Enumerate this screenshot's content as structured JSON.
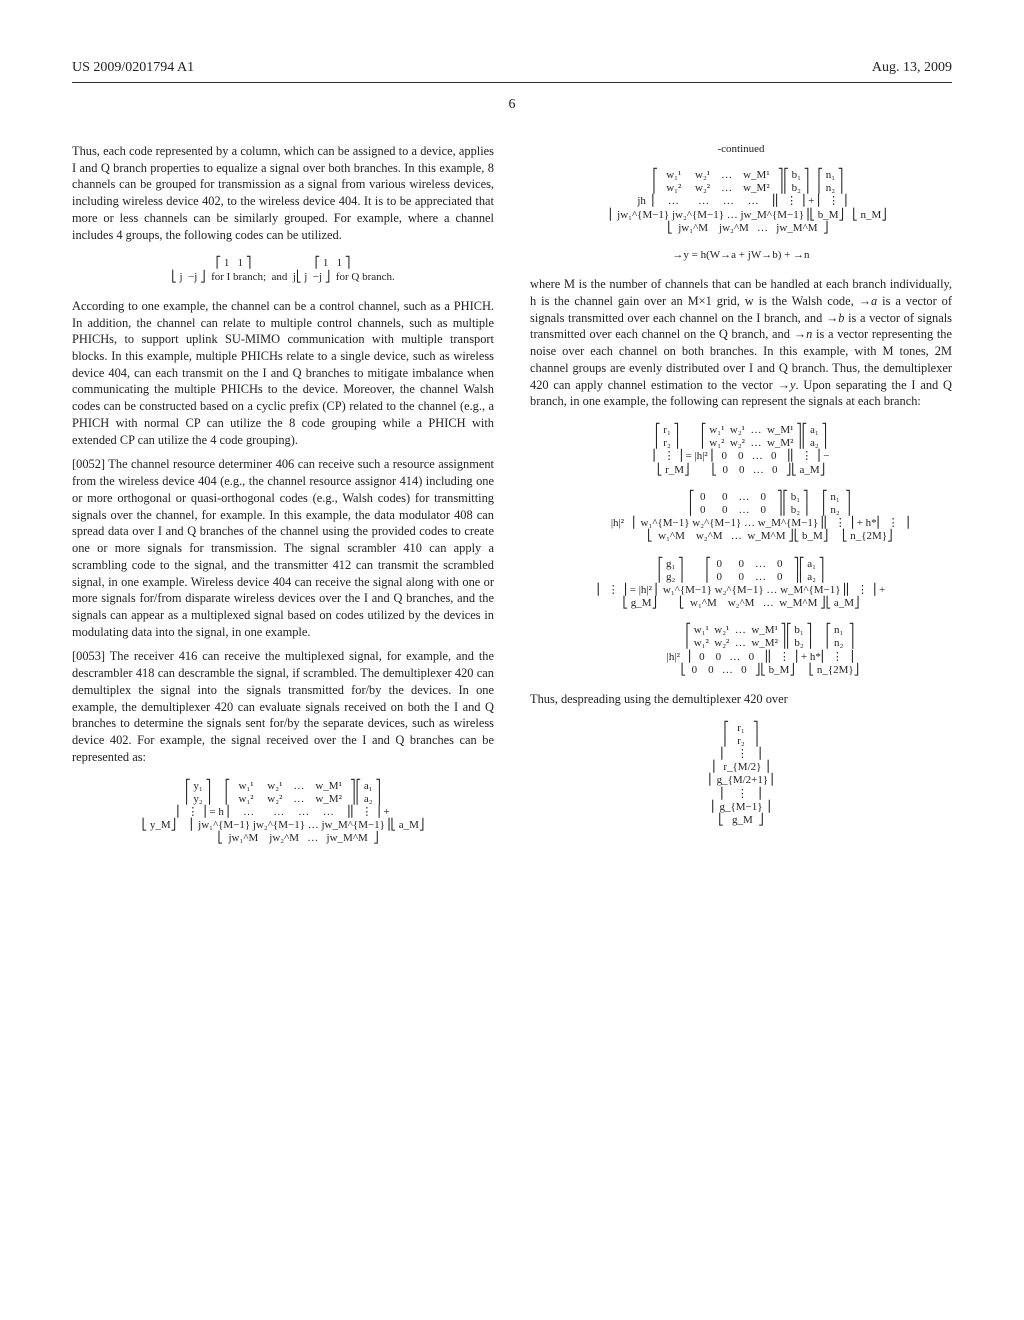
{
  "header": {
    "pub_number": "US 2009/0201794 A1",
    "pub_date": "Aug. 13, 2009",
    "page_number": "6"
  },
  "left_col": {
    "p1": "Thus, each code represented by a column, which can be assigned to a device, applies I and Q branch properties to equalize a signal over both branches. In this example, 8 channels can be grouped for transmission as a signal from various wireless devices, including wireless device 402, to the wireless device 404. It is to be appreciated that more or less channels can be similarly grouped. For example, where a channel includes 4 groups, the following codes can be utilized.",
    "eq1": "⎡ 1   1 ⎤                       ⎡ 1   1 ⎤\n⎣ j  −j ⎦  for I branch;  and  j⎣ j  −j ⎦  for Q branch.",
    "p2": "According to one example, the channel can be a control channel, such as a PHICH. In addition, the channel can relate to multiple control channels, such as multiple PHICHs, to support uplink SU-MIMO communication with multiple transport blocks. In this example, multiple PHICHs relate to a single device, such as wireless device 404, can each transmit on the I and Q branches to mitigate imbalance when communicating the multiple PHICHs to the device. Moreover, the channel Walsh codes can be constructed based on a cyclic prefix (CP) related to the channel (e.g., a PHICH with normal CP can utilize the 8 code grouping while a PHICH with extended CP can utilize the 4 code grouping).",
    "p3_num": "[0052]",
    "p3": "   The channel resource determiner 406 can receive such a resource assignment from the wireless device 404 (e.g., the channel resource assignor 414) including one or more orthogonal or quasi-orthogonal codes (e.g., Walsh codes) for transmitting signals over the channel, for example. In this example, the data modulator 408 can spread data over I and Q branches of the channel using the provided codes to create one or more signals for transmission. The signal scrambler 410 can apply a scrambling code to the signal, and the transmitter 412 can transmit the scrambled signal, in one example. Wireless device 404 can receive the signal along with one or more signals for/from disparate wireless devices over the I and Q branches, and the signals can appear as a multiplexed signal based on codes utilized by the devices in modulating data into the signal, in one example.",
    "p4_num": "[0053]",
    "p4": "   The receiver 416 can receive the multiplexed signal, for example, and the descrambler 418 can descramble the signal, if scrambled. The demultiplexer 420 can demultiplex the signal into the signals transmitted for/by the devices. In one example, the demultiplexer 420 can evaluate signals received on both the I and Q branches to determine the signals sent for/by the separate devices, such as wireless device 402. For example, the signal received over the I and Q branches can be represented as:",
    "eq2": "⎡ y₁ ⎤     ⎡   w₁¹     w₂¹    …    w_M¹   ⎤⎡ a₁ ⎤\n⎢ y₂ ⎥     ⎢   w₁²     w₂²    …    w_M²   ⎥⎢ a₂ ⎥\n⎢  ⋮ ⎥ = h ⎢    …       …     …     …    ⎥⎢  ⋮ ⎥ +\n⎣ y_M⎦     ⎢ jw₁^{M−1} jw₂^{M−1} … jw_M^{M−1}⎥⎣ a_M⎦\n           ⎣  jw₁^M    jw₂^M   …   jw_M^M  ⎦"
  },
  "right_col": {
    "continued": "-continued",
    "eq3": "     ⎡   w₁¹     w₂¹    …    w_M¹   ⎤⎡ b₁ ⎤   ⎡ n₁ ⎤\n     ⎢   w₁²     w₂²    …    w_M²   ⎥⎢ b₂ ⎥   ⎢ n₂ ⎥\n jh  ⎢    …       …     …     …    ⎥⎢  ⋮ ⎥ + ⎢  ⋮ ⎥\n     ⎢ jw₁^{M−1} jw₂^{M−1} … jw_M^{M−1}⎥⎣ b_M⎦   ⎣ n_M⎦\n     ⎣  jw₁^M    jw₂^M   …   jw_M^M  ⎦",
    "eq3b": "→y = h(W→a + jW→b) + →n",
    "p1a": "where M is the number of channels that can be handled at each branch individually, h is the channel gain over an M×1 grid, w is the Walsh code, ",
    "p1_vec_a": "→a",
    "p1b": " is a vector of signals transmitted over each channel on the I branch, and ",
    "p1_vec_b": "→b",
    "p1c": " is a vector of signals transmitted over each channel on the Q branch, and ",
    "p1_vec_n": "→n",
    "p1d": " is a vector representing the noise over each channel on both branches. In this example, with M tones, 2M channel groups are evenly distributed over I and Q branch. Thus, the demultiplexer 420 can apply channel estimation to the vector ",
    "p1_vec_y": "→y",
    "p1e": ". Upon separating the I and Q branch, in one example, the following can represent the signals at each branch:",
    "eq4": "⎡ r₁ ⎤        ⎡ w₁¹  w₂¹  …  w_M¹ ⎤⎡ a₁ ⎤\n⎢ r₂ ⎥        ⎢ w₁²  w₂²  …  w_M² ⎥⎢ a₂ ⎥\n⎢  ⋮ ⎥ = |h|² ⎢  0    0   …   0   ⎥⎢  ⋮ ⎥ −\n⎣ r_M⎦        ⎣  0    0   …   0   ⎦⎣ a_M⎦",
    "eq4b": "                     ⎡  0      0    …    0    ⎤⎡ b₁ ⎤     ⎡ n₁  ⎤\n                     ⎢  0      0    …    0    ⎥⎢ b₂ ⎥     ⎢ n₂  ⎥\n              |h|²   ⎢ w₁^{M−1} w₂^{M−1} … w_M^{M−1}⎥⎢  ⋮ ⎥ + h*⎢  ⋮  ⎥\n                     ⎣  w₁^M    w₂^M   …  w_M^M ⎦⎣ b_M⎦     ⎣ n_{2M}⎦",
    "eq5": "⎡ g₁ ⎤        ⎡  0      0    …    0    ⎤⎡ a₁ ⎤\n⎢ g₂ ⎥        ⎢  0      0    …    0    ⎥⎢ a₂ ⎥\n⎢  ⋮ ⎥ = |h|² ⎢ w₁^{M−1} w₂^{M−1} … w_M^{M−1}⎥⎢  ⋮ ⎥ +\n⎣ g_M⎦        ⎣  w₁^M    w₂^M   …  w_M^M ⎦⎣ a_M⎦",
    "eq5b": "                     ⎡ w₁¹  w₂¹  …  w_M¹ ⎤⎡ b₁ ⎤     ⎡ n₁  ⎤\n                     ⎢ w₁²  w₂²  …  w_M² ⎥⎢ b₂ ⎥     ⎢ n₂  ⎥\n              |h|²   ⎢  0    0   …   0   ⎥⎢  ⋮ ⎥ + h*⎢  ⋮  ⎥\n                     ⎣  0    0   …   0   ⎦⎣ b_M⎦     ⎣ n_{2M}⎦",
    "p2": "Thus, despreading using the demultiplexer 420 over",
    "eq6": "⎡   r₁   ⎤\n⎢   r₂   ⎥\n⎢    ⋮   ⎥\n⎢  r_{M/2} ⎥\n⎢ g_{M/2+1}⎥\n⎢    ⋮   ⎥\n⎢ g_{M−1} ⎥\n⎣   g_M  ⎦"
  }
}
